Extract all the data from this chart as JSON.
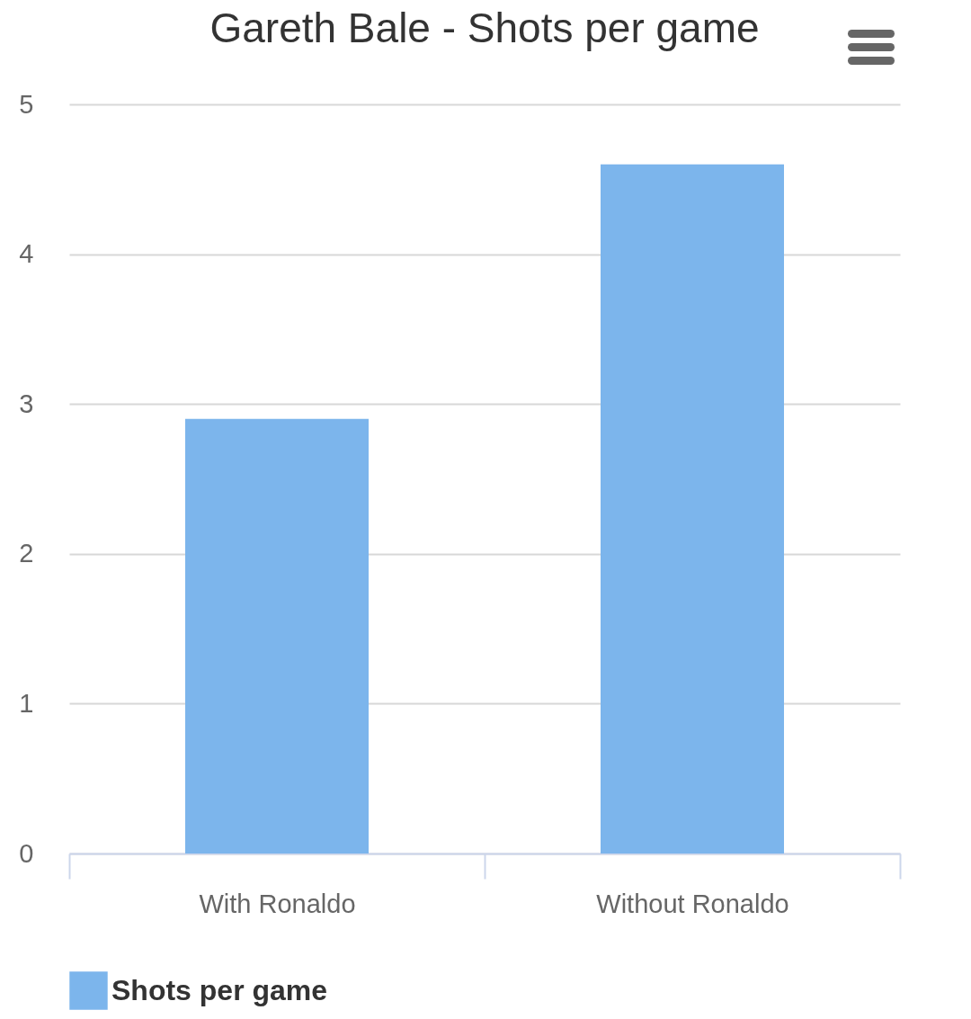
{
  "chart_data": {
    "type": "bar",
    "title": "Gareth Bale - Shots per game",
    "categories": [
      "With Ronaldo",
      "Without Ronaldo"
    ],
    "series": [
      {
        "name": "Shots per game",
        "color": "#7cb5ec",
        "values": [
          2.9,
          4.6
        ]
      }
    ],
    "ylim": [
      0,
      5
    ],
    "yticks": [
      0,
      1,
      2,
      3,
      4,
      5
    ],
    "grid": "y",
    "legend": "bottom"
  }
}
